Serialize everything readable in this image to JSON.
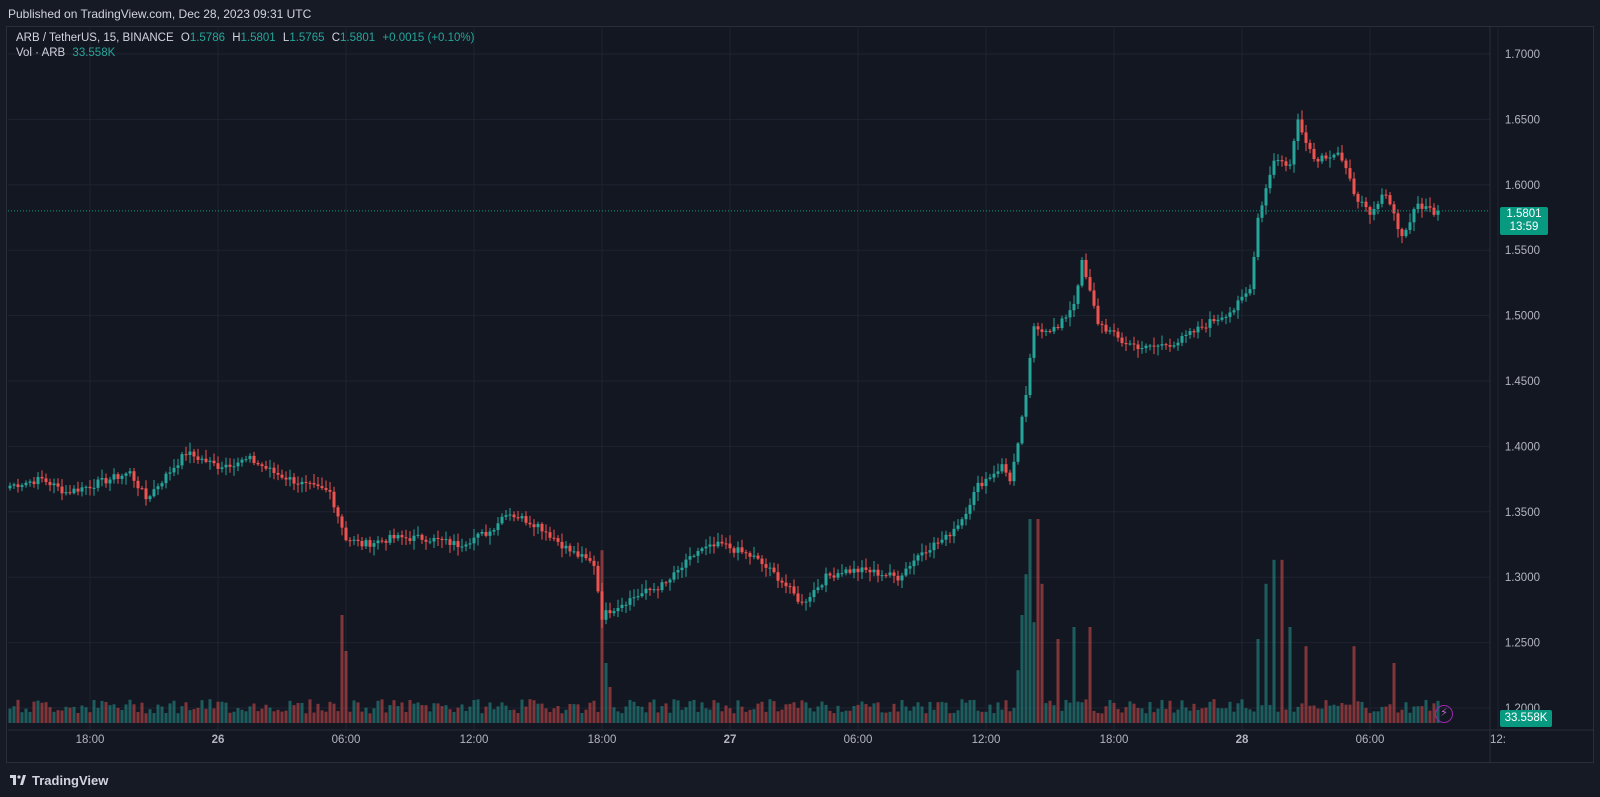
{
  "header": {
    "published": "Published on TradingView.com, Dec 28, 2023 09:31 UTC"
  },
  "legend": {
    "symbol": "ARB / TetherUS, 15, BINANCE",
    "open_label": "O",
    "open": "1.5786",
    "high_label": "H",
    "high": "1.5801",
    "low_label": "L",
    "low": "1.5765",
    "close_label": "C",
    "close": "1.5801",
    "change": "+0.0015 (+0.10%)",
    "vol_label": "Vol · ARB",
    "vol_value": "33.558K"
  },
  "price_tag": {
    "price": "1.5801",
    "countdown": "13:59"
  },
  "volume_tag": "33.558K",
  "footer": {
    "brand": "TradingView"
  },
  "colors": {
    "up": "#26a69a",
    "down": "#ef5350",
    "background": "#131722",
    "grid": "#1f2330",
    "accent": "#089981"
  },
  "icons": {
    "replay": "lightning-icon",
    "logo": "tradingview-logo-icon"
  },
  "chart_data": {
    "type": "candlestick",
    "symbol": "ARB/USDT",
    "interval": "15",
    "y_ticks": [
      "1.7000",
      "1.6500",
      "1.6000",
      "1.5500",
      "1.5000",
      "1.4500",
      "1.4000",
      "1.3500",
      "1.3000",
      "1.2500",
      "1.2000"
    ],
    "ylim": [
      1.1887,
      1.7261
    ],
    "x_ticks": [
      {
        "label": "18:00",
        "bar": 20
      },
      {
        "label": "26",
        "bar": 52
      },
      {
        "label": "06:00",
        "bar": 84
      },
      {
        "label": "12:00",
        "bar": 116
      },
      {
        "label": "18:00",
        "bar": 148
      },
      {
        "label": "27",
        "bar": 180
      },
      {
        "label": "06:00",
        "bar": 212
      },
      {
        "label": "12:00",
        "bar": 244
      },
      {
        "label": "18:00",
        "bar": 276
      },
      {
        "label": "28",
        "bar": 308
      },
      {
        "label": "06:00",
        "bar": 340
      },
      {
        "label": "12:",
        "bar": 372
      }
    ],
    "anchors": [
      [
        0,
        1.37
      ],
      [
        8,
        1.375
      ],
      [
        14,
        1.365
      ],
      [
        20,
        1.37
      ],
      [
        30,
        1.38
      ],
      [
        34,
        1.36
      ],
      [
        44,
        1.395
      ],
      [
        52,
        1.385
      ],
      [
        60,
        1.39
      ],
      [
        66,
        1.38
      ],
      [
        74,
        1.37
      ],
      [
        80,
        1.365
      ],
      [
        84,
        1.33
      ],
      [
        88,
        1.325
      ],
      [
        96,
        1.33
      ],
      [
        104,
        1.33
      ],
      [
        112,
        1.325
      ],
      [
        120,
        1.335
      ],
      [
        124,
        1.35
      ],
      [
        132,
        1.34
      ],
      [
        136,
        1.33
      ],
      [
        140,
        1.32
      ],
      [
        146,
        1.31
      ],
      [
        148,
        1.27
      ],
      [
        150,
        1.275
      ],
      [
        156,
        1.285
      ],
      [
        164,
        1.295
      ],
      [
        172,
        1.32
      ],
      [
        178,
        1.325
      ],
      [
        186,
        1.315
      ],
      [
        192,
        1.3
      ],
      [
        198,
        1.28
      ],
      [
        204,
        1.3
      ],
      [
        208,
        1.305
      ],
      [
        214,
        1.305
      ],
      [
        222,
        1.3
      ],
      [
        228,
        1.32
      ],
      [
        234,
        1.33
      ],
      [
        238,
        1.345
      ],
      [
        242,
        1.37
      ],
      [
        248,
        1.385
      ],
      [
        250,
        1.375
      ],
      [
        252,
        1.4
      ],
      [
        254,
        1.44
      ],
      [
        256,
        1.49
      ],
      [
        262,
        1.49
      ],
      [
        266,
        1.51
      ],
      [
        268,
        1.54
      ],
      [
        272,
        1.495
      ],
      [
        278,
        1.48
      ],
      [
        284,
        1.475
      ],
      [
        292,
        1.48
      ],
      [
        300,
        1.495
      ],
      [
        306,
        1.505
      ],
      [
        310,
        1.52
      ],
      [
        312,
        1.575
      ],
      [
        316,
        1.62
      ],
      [
        320,
        1.615
      ],
      [
        322,
        1.65
      ],
      [
        326,
        1.62
      ],
      [
        332,
        1.625
      ],
      [
        336,
        1.595
      ],
      [
        340,
        1.575
      ],
      [
        344,
        1.595
      ],
      [
        348,
        1.56
      ],
      [
        352,
        1.585
      ],
      [
        356,
        1.58
      ],
      [
        357,
        1.5801
      ]
    ],
    "volume_spikes": [
      [
        83,
        0.45
      ],
      [
        84,
        0.3
      ],
      [
        148,
        0.72
      ],
      [
        149,
        0.25
      ],
      [
        150,
        0.15
      ],
      [
        252,
        0.22
      ],
      [
        253,
        0.45
      ],
      [
        254,
        0.62
      ],
      [
        255,
        0.85
      ],
      [
        256,
        0.42
      ],
      [
        257,
        0.85
      ],
      [
        258,
        0.58
      ],
      [
        262,
        0.35
      ],
      [
        266,
        0.4
      ],
      [
        270,
        0.4
      ],
      [
        312,
        0.35
      ],
      [
        314,
        0.58
      ],
      [
        316,
        0.68
      ],
      [
        318,
        0.68
      ],
      [
        320,
        0.4
      ],
      [
        324,
        0.32
      ],
      [
        336,
        0.32
      ],
      [
        346,
        0.25
      ]
    ],
    "last_price": 1.5801,
    "last_volume": "33.558K"
  }
}
